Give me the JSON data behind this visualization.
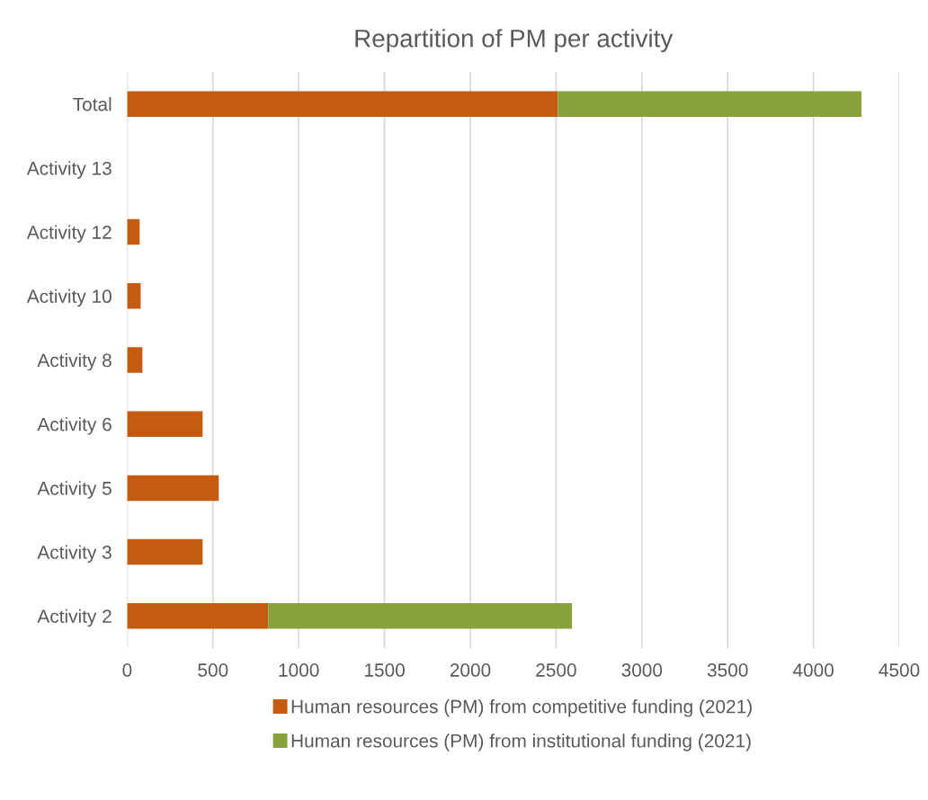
{
  "chart_data": {
    "type": "bar",
    "title": "Repartition of PM per activity",
    "orientation": "horizontal",
    "stacked": true,
    "categories": [
      "Total",
      "Activity 13",
      "Activity 12",
      "Activity 10",
      "Activity 8",
      "Activity 6",
      "Activity 5",
      "Activity 3",
      "Activity 2"
    ],
    "series": [
      {
        "name": "Human resources (PM) from competitive funding (2021)",
        "color": "#c55a11",
        "values": [
          2510,
          0,
          73,
          79,
          89,
          440,
          534,
          440,
          822
        ]
      },
      {
        "name": "Human resources (PM) from institutional funding (2021)",
        "color": "#88a13b",
        "values": [
          1770,
          0,
          0,
          0,
          0,
          0,
          0,
          0,
          1771
        ]
      }
    ],
    "xlim": [
      0,
      4500
    ],
    "xticks": [
      0,
      500,
      1000,
      1500,
      2000,
      2500,
      3000,
      3500,
      4000,
      4500
    ],
    "grid": "x",
    "legend": "bottom"
  }
}
